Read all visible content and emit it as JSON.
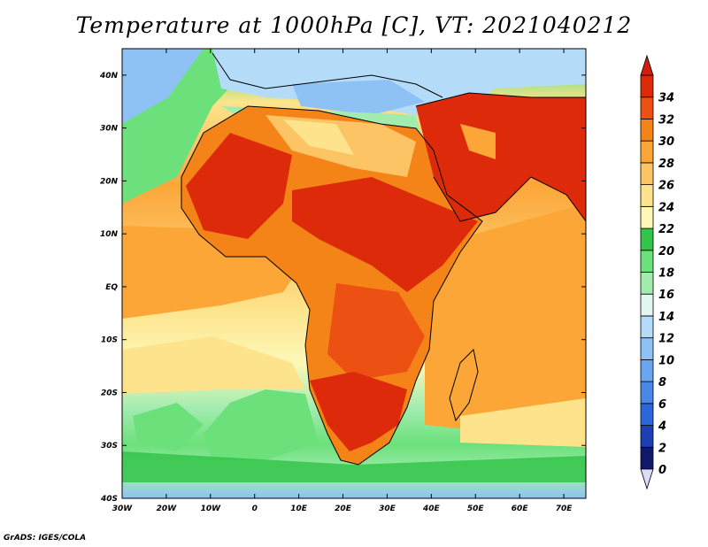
{
  "title": "Temperature at 1000hPa [C], VT: 2021040212",
  "footer": "GrADS: IGES/COLA",
  "map": {
    "projection": "latlon",
    "lon_range": [
      -30,
      75
    ],
    "lat_range": [
      -40,
      45
    ],
    "lon_ticks": [
      {
        "value": -30,
        "label": "30W"
      },
      {
        "value": -20,
        "label": "20W"
      },
      {
        "value": -10,
        "label": "10W"
      },
      {
        "value": 0,
        "label": "0"
      },
      {
        "value": 10,
        "label": "10E"
      },
      {
        "value": 20,
        "label": "20E"
      },
      {
        "value": 30,
        "label": "30E"
      },
      {
        "value": 40,
        "label": "40E"
      },
      {
        "value": 50,
        "label": "50E"
      },
      {
        "value": 60,
        "label": "60E"
      },
      {
        "value": 70,
        "label": "70E"
      }
    ],
    "lat_ticks": [
      {
        "value": 40,
        "label": "40N"
      },
      {
        "value": 30,
        "label": "30N"
      },
      {
        "value": 20,
        "label": "20N"
      },
      {
        "value": 10,
        "label": "10N"
      },
      {
        "value": 0,
        "label": "EQ"
      },
      {
        "value": -10,
        "label": "10S"
      },
      {
        "value": -20,
        "label": "20S"
      },
      {
        "value": -30,
        "label": "30S"
      },
      {
        "value": -40,
        "label": "40S"
      }
    ]
  },
  "colorbar": {
    "levels": [
      "0",
      "2",
      "4",
      "6",
      "8",
      "10",
      "12",
      "14",
      "16",
      "18",
      "20",
      "22",
      "24",
      "26",
      "28",
      "30",
      "32",
      "34"
    ],
    "colors": [
      "#10186a",
      "#1c3fb2",
      "#2c66d8",
      "#4a88e8",
      "#6aa6f0",
      "#8ec2f4",
      "#b4dcf8",
      "#e2f6f2",
      "#a2ecb0",
      "#6ce07a",
      "#34c44a",
      "#fdf8b8",
      "#fde48c",
      "#fcc464",
      "#fca638",
      "#f48418",
      "#ec5012",
      "#dc2a0a"
    ],
    "under_color": "#dcdcfa",
    "over_color": "#d21c0c"
  }
}
